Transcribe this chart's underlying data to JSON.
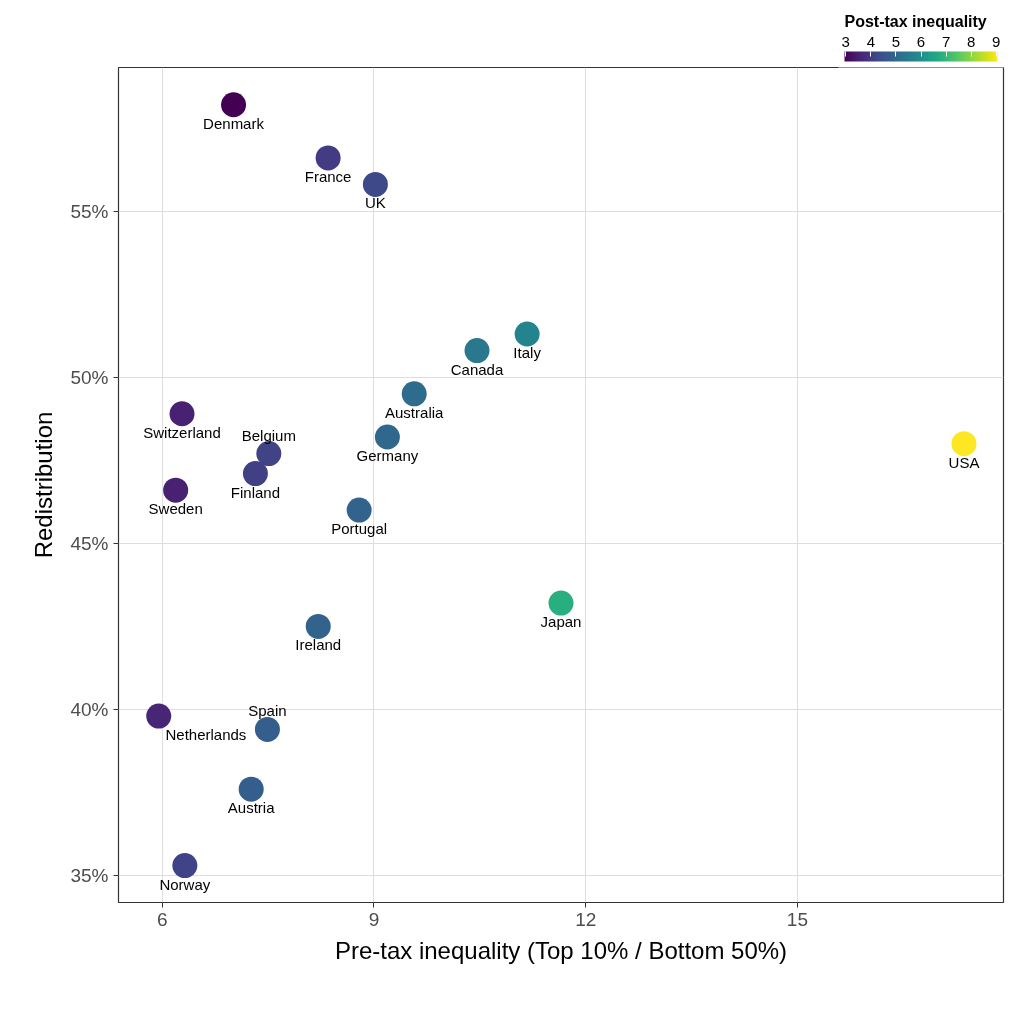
{
  "chart_data": {
    "type": "scatter",
    "xlabel": "Pre-tax inequality (Top 10% / Bottom 50%)",
    "ylabel": "Redistribution",
    "clabel": "Post-tax inequality",
    "x": [
      7.01,
      8.35,
      9.02,
      11.17,
      10.46,
      9.57,
      9.19,
      6.28,
      7.51,
      7.32,
      6.19,
      8.79,
      11.65,
      17.36,
      8.21,
      5.95,
      7.49,
      7.26,
      6.32
    ],
    "values": [
      58.2,
      56.6,
      55.8,
      51.3,
      50.8,
      49.5,
      48.2,
      48.9,
      47.7,
      47.1,
      46.6,
      46.0,
      43.2,
      48.0,
      42.5,
      39.8,
      39.4,
      37.6,
      35.3
    ],
    "cvalues": [
      2.95,
      4.0,
      4.3,
      5.7,
      5.4,
      5.1,
      5.0,
      3.5,
      4.2,
      4.1,
      3.5,
      4.9,
      6.8,
      9.05,
      4.9,
      3.6,
      4.8,
      4.8,
      4.2
    ],
    "clim": [
      2.95,
      9.05
    ],
    "cticks": [
      3,
      4,
      5,
      6,
      7,
      8,
      9
    ],
    "xlim": [
      5.38,
      17.92
    ],
    "xticks": [
      6,
      9,
      12,
      15
    ],
    "ylim": [
      34.19,
      59.32
    ],
    "yticks": [
      {
        "value": 35,
        "label": "35%"
      },
      {
        "value": 40,
        "label": "40%"
      },
      {
        "value": 45,
        "label": "45%"
      },
      {
        "value": 50,
        "label": "50%"
      },
      {
        "value": 55,
        "label": "55%"
      }
    ],
    "grid": true,
    "marker": "circle",
    "annotations": [
      {
        "text": "Denmark",
        "x": 7.01,
        "y": 58.2
      },
      {
        "text": "France",
        "x": 8.35,
        "y": 56.6
      },
      {
        "text": "UK",
        "x": 9.02,
        "y": 55.8
      },
      {
        "text": "Italy",
        "x": 11.17,
        "y": 51.3
      },
      {
        "text": "Canada",
        "x": 10.46,
        "y": 50.8
      },
      {
        "text": "Australia",
        "x": 9.57,
        "y": 49.5
      },
      {
        "text": "Germany",
        "x": 9.19,
        "y": 48.2
      },
      {
        "text": "Switzerland",
        "x": 6.28,
        "y": 48.9
      },
      {
        "text": "Belgium",
        "x": 7.51,
        "y": 47.7
      },
      {
        "text": "Finland",
        "x": 7.32,
        "y": 47.1
      },
      {
        "text": "Sweden",
        "x": 6.19,
        "y": 46.6
      },
      {
        "text": "Portugal",
        "x": 8.79,
        "y": 46.0
      },
      {
        "text": "Japan",
        "x": 11.65,
        "y": 43.2
      },
      {
        "text": "USA",
        "x": 17.36,
        "y": 48.0
      },
      {
        "text": "Ireland",
        "x": 8.21,
        "y": 42.5
      },
      {
        "text": "Netherlands",
        "x": 5.95,
        "y": 39.8
      },
      {
        "text": "Spain",
        "x": 7.49,
        "y": 39.4
      },
      {
        "text": "Austria",
        "x": 7.26,
        "y": 37.6
      },
      {
        "text": "Norway",
        "x": 6.32,
        "y": 35.3
      }
    ]
  }
}
